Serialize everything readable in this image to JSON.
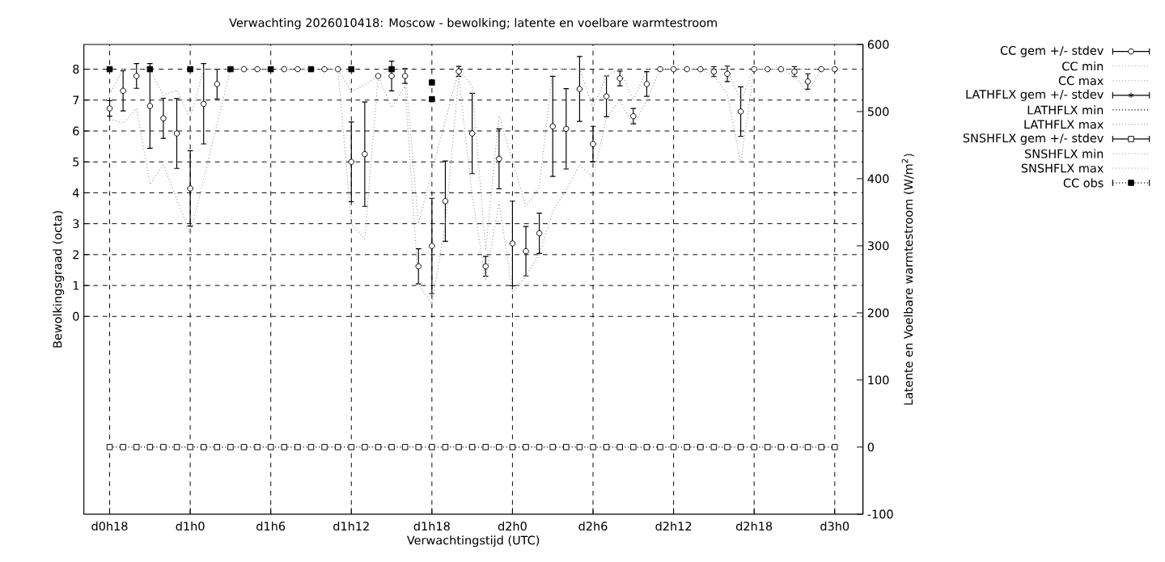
{
  "chart_data": {
    "type": "scatter",
    "title": "Verwachting 2026010418: Moscow - bewolking; latente en voelbare warmtestroom",
    "xlabel": "Verwachtingstijd (UTC)",
    "ylabel": "Bewolkingsgraad (octa)",
    "y2label": "Latente en Voelbare warmtestroom (W/m$^{2}$)",
    "categories": [
      "d0h18",
      null,
      null,
      null,
      null,
      null,
      "d1h0",
      null,
      null,
      null,
      null,
      null,
      "d1h6",
      null,
      null,
      null,
      null,
      null,
      "d1h12",
      null,
      null,
      null,
      null,
      null,
      "d1h18",
      null,
      null,
      null,
      null,
      null,
      "d2h0",
      null,
      null,
      null,
      null,
      null,
      "d2h6",
      null,
      null,
      null,
      null,
      null,
      "d2h12",
      null,
      null,
      null,
      null,
      null,
      "d2h18",
      null,
      null,
      null,
      null,
      null,
      "d3h0"
    ],
    "ylim": [
      -6.4,
      8.8
    ],
    "yticks": [
      0,
      1,
      2,
      3,
      4,
      5,
      6,
      7,
      8
    ],
    "y2lim": [
      -100,
      600
    ],
    "y2ticks": [
      -100,
      0,
      100,
      200,
      300,
      400,
      500,
      600
    ],
    "grid": true,
    "legend": "top right",
    "series": [
      {
        "name": "CC gem +/- stdev",
        "marker": "circle",
        "color": "#000000",
        "values": [
          6.73,
          7.3,
          7.78,
          6.81,
          6.41,
          5.92,
          4.14,
          6.88,
          7.52,
          null,
          8,
          8,
          null,
          8,
          8,
          null,
          8,
          8,
          5.0,
          5.25,
          7.78,
          7.78,
          7.78,
          1.62,
          2.28,
          3.73,
          7.93,
          5.92,
          1.62,
          5.1,
          2.36,
          2.11,
          2.69,
          6.15,
          6.07,
          7.36,
          5.58,
          7.12,
          7.7,
          6.48,
          7.52,
          8,
          8,
          8,
          8,
          7.92,
          7.85,
          6.63,
          8,
          8,
          8,
          7.92,
          7.6,
          8,
          8
        ],
        "errors": [
          0.25,
          0.65,
          0.4,
          1.37,
          0.65,
          1.13,
          1.22,
          1.3,
          0.48,
          null,
          null,
          null,
          null,
          null,
          null,
          null,
          null,
          null,
          1.29,
          1.69,
          null,
          0.48,
          0.24,
          0.57,
          1.54,
          1.3,
          0.16,
          1.3,
          0.32,
          0.97,
          1.37,
          0.8,
          0.65,
          1.62,
          1.3,
          1.05,
          0.57,
          0.66,
          0.24,
          0.25,
          0.4,
          null,
          null,
          null,
          null,
          0.16,
          0.25,
          0.8,
          null,
          null,
          null,
          0.16,
          0.25,
          null,
          null
        ]
      },
      {
        "name": "CC min",
        "type": "line",
        "line_style": "dotted",
        "color": "#a0a0a0",
        "values": [
          6.39,
          6.25,
          6.73,
          4.27,
          4.9,
          3.79,
          2.66,
          4.44,
          6.22,
          8,
          8,
          8,
          8,
          8,
          8,
          8,
          8,
          8,
          3.0,
          2.5,
          7.78,
          6.76,
          7.45,
          1.05,
          0.41,
          3.0,
          7.78,
          3.9,
          1.2,
          3.7,
          0.78,
          1.3,
          2.0,
          3.4,
          4.1,
          4.9,
          4.5,
          6.42,
          7.0,
          6.16,
          7.0,
          8,
          8,
          8,
          8,
          7.78,
          7.19,
          4.97,
          8,
          8,
          8,
          7.78,
          7.24,
          8,
          8
        ]
      },
      {
        "name": "CC max",
        "type": "line",
        "line_style": "dotted",
        "color": "#a0a0a0",
        "values": [
          7.19,
          8,
          8,
          8,
          7.15,
          7.32,
          6.43,
          8,
          8,
          8,
          8,
          8,
          8,
          8,
          8,
          8,
          8,
          8,
          7.28,
          7.5,
          7.78,
          8,
          8,
          3.0,
          4.7,
          6.33,
          8,
          7.45,
          2.15,
          6.5,
          5.05,
          3.56,
          4.2,
          8,
          8,
          8,
          6.76,
          7.78,
          8,
          7.0,
          8,
          8,
          8,
          8,
          8,
          8,
          8,
          7.0,
          8,
          8,
          8,
          8,
          8,
          8,
          8
        ]
      },
      {
        "name": "LATHFLX gem +/- stdev",
        "marker": "star",
        "axis": "y2",
        "color": "#000000",
        "values": [
          null,
          null,
          null,
          null,
          null,
          null,
          null,
          null,
          null,
          null,
          null,
          null,
          null,
          null,
          null,
          null,
          null,
          null,
          null,
          null,
          null,
          null,
          null,
          null,
          null,
          null,
          null,
          null,
          null,
          null,
          null,
          null,
          null,
          null,
          null,
          null,
          null,
          null,
          null,
          null,
          null,
          null,
          null,
          null,
          null,
          null,
          null,
          null,
          null,
          null,
          null,
          null,
          null,
          null,
          null
        ],
        "errors": [
          null,
          null,
          null,
          null,
          null,
          null,
          null,
          null,
          null,
          null,
          null,
          null,
          null,
          null,
          null,
          null,
          null,
          null,
          null,
          null,
          null,
          null,
          null,
          null,
          null,
          null,
          null,
          null,
          null,
          null,
          null,
          null,
          null,
          null,
          null,
          null,
          null,
          null,
          null,
          null,
          null,
          null,
          null,
          null,
          null,
          null,
          null,
          null,
          null,
          null,
          null,
          null,
          null,
          null,
          null
        ]
      },
      {
        "name": "LATHFLX min",
        "type": "line",
        "line_style": "dotted",
        "axis": "y2",
        "color": "#000000",
        "values": [
          0,
          0,
          0,
          0,
          0,
          0,
          0,
          0,
          0,
          0,
          0,
          0,
          0,
          0,
          0,
          0,
          0,
          0,
          0,
          0,
          0,
          0,
          0,
          0,
          0,
          0,
          0,
          0,
          0,
          0,
          0,
          0,
          0,
          0,
          0,
          0,
          0,
          0,
          0,
          0,
          0,
          0,
          0,
          0,
          0,
          0,
          0,
          0,
          0,
          0,
          0,
          0,
          0,
          0,
          0
        ]
      },
      {
        "name": "LATHFLX max",
        "type": "line",
        "line_style": "dotted",
        "axis": "y2",
        "color": "#a0a0a0",
        "values": [
          null,
          null,
          null,
          null,
          null,
          null,
          null,
          null,
          null,
          null,
          null,
          null,
          null,
          null,
          null,
          null,
          null,
          null,
          null,
          null,
          null,
          null,
          null,
          null,
          null,
          null,
          null,
          null,
          null,
          null,
          null,
          null,
          null,
          null,
          null,
          null,
          null,
          null,
          null,
          null,
          null,
          null,
          null,
          null,
          null,
          null,
          null,
          null,
          null,
          null,
          null,
          null,
          null,
          null,
          null
        ]
      },
      {
        "name": "SNSHFLX gem +/- stdev",
        "marker": "square",
        "axis": "y2",
        "color": "#000000",
        "values": [
          0,
          0,
          0,
          0,
          0,
          0,
          0,
          0,
          0,
          0,
          0,
          0,
          0,
          0,
          0,
          0,
          0,
          0,
          0,
          0,
          0,
          0,
          0,
          0,
          0,
          0,
          0,
          0,
          0,
          0,
          0,
          0,
          0,
          0,
          0,
          0,
          0,
          0,
          0,
          0,
          0,
          0,
          0,
          0,
          0,
          0,
          0,
          0,
          0,
          0,
          0,
          0,
          0,
          0,
          0
        ],
        "errors": [
          0,
          0,
          0,
          0,
          0,
          0,
          0,
          0,
          0,
          0,
          0,
          0,
          0,
          0,
          0,
          0,
          0,
          0,
          0,
          0,
          0,
          0,
          0,
          0,
          0,
          0,
          0,
          0,
          0,
          0,
          0,
          0,
          0,
          0,
          0,
          0,
          0,
          0,
          0,
          0,
          0,
          0,
          0,
          0,
          0,
          0,
          0,
          0,
          0,
          0,
          0,
          0,
          0,
          0,
          0
        ]
      },
      {
        "name": "SNSHFLX min",
        "type": "line",
        "line_style": "dotted",
        "axis": "y2",
        "color": "#a0a0a0",
        "values": [
          null,
          null,
          null,
          null,
          null,
          null,
          null,
          null,
          null,
          null,
          null,
          null,
          null,
          null,
          null,
          null,
          null,
          null,
          null,
          null,
          null,
          null,
          null,
          null,
          null,
          null,
          null,
          null,
          null,
          null,
          null,
          null,
          null,
          null,
          null,
          null,
          null,
          null,
          null,
          null,
          null,
          null,
          null,
          null,
          null,
          null,
          null,
          null,
          null,
          null,
          null,
          null,
          null,
          null,
          null
        ]
      },
      {
        "name": "SNSHFLX max",
        "type": "line",
        "line_style": "dotted",
        "axis": "y2",
        "color": "#a0a0a0",
        "values": [
          null,
          null,
          null,
          null,
          null,
          null,
          null,
          null,
          null,
          null,
          null,
          null,
          null,
          null,
          null,
          null,
          null,
          null,
          null,
          null,
          null,
          null,
          null,
          null,
          null,
          null,
          null,
          null,
          null,
          null,
          null,
          null,
          null,
          null,
          null,
          null,
          null,
          null,
          null,
          null,
          null,
          null,
          null,
          null,
          null,
          null,
          null,
          null,
          null,
          null,
          null,
          null,
          null,
          null,
          null
        ]
      },
      {
        "name": "CC obs",
        "marker": "square",
        "color": "#000000",
        "values": [
          8,
          null,
          null,
          8,
          null,
          null,
          8,
          null,
          null,
          8,
          null,
          null,
          8,
          null,
          null,
          8,
          null,
          null,
          8,
          null,
          null,
          8,
          null,
          null,
          7.57,
          null,
          null,
          null,
          null,
          null,
          null,
          null,
          null,
          null,
          null,
          null,
          null,
          null,
          null,
          null,
          null,
          null,
          null,
          null,
          null,
          null,
          null,
          null,
          null,
          null,
          null,
          null,
          null,
          null,
          null
        ]
      },
      {
        "marker": "square",
        "color": "#000000",
        "values": [
          null,
          null,
          null,
          null,
          null,
          null,
          null,
          null,
          null,
          null,
          null,
          null,
          null,
          null,
          null,
          null,
          null,
          null,
          null,
          null,
          null,
          null,
          null,
          null,
          7.03,
          null,
          null,
          null,
          null,
          null,
          null,
          null,
          null,
          null,
          null,
          null,
          null,
          null,
          null,
          null,
          null,
          null,
          null,
          null,
          null,
          null,
          null,
          null,
          null,
          null,
          null,
          null,
          null,
          null,
          null
        ]
      }
    ]
  }
}
